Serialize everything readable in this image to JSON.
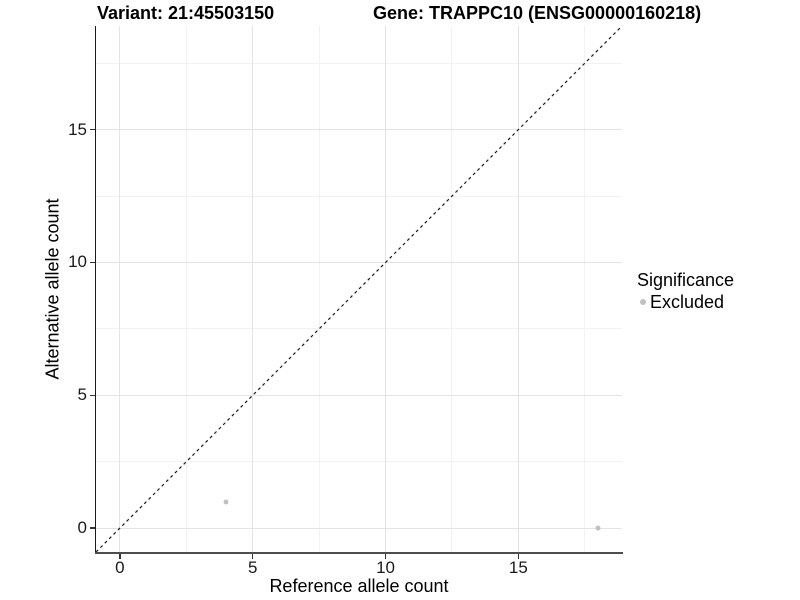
{
  "chart_data": {
    "type": "scatter",
    "title_left": "Variant: 21:45503150",
    "title_right": "Gene: TRAPPC10 (ENSG00000160218)",
    "xlabel": "Reference allele count",
    "ylabel": "Alternative allele count",
    "xlim": [
      -0.9,
      18.9
    ],
    "ylim": [
      -0.9,
      18.9
    ],
    "x_ticks": [
      0,
      5,
      10,
      15
    ],
    "y_ticks": [
      0,
      5,
      10,
      15
    ],
    "x_minor_ticks": [
      2.5,
      7.5,
      12.5,
      17.5
    ],
    "y_minor_ticks": [
      2.5,
      7.5,
      12.5,
      17.5
    ],
    "grid": "major+minor",
    "identity_line": {
      "type": "dashed",
      "slope": 1,
      "intercept": 0
    },
    "points": [
      {
        "x": 4,
        "y": 1,
        "series": "Excluded"
      },
      {
        "x": 18,
        "y": 0,
        "series": "Excluded"
      }
    ],
    "legend": {
      "title": "Significance",
      "position": "right",
      "items": [
        {
          "label": "Excluded",
          "color": "#c1c1c1"
        }
      ]
    },
    "colors": {
      "point": "#c1c1c1",
      "grid_major": "#e4e4e4",
      "grid_minor": "#f2f2f2",
      "dashed_line": "#1a1a1a"
    }
  }
}
